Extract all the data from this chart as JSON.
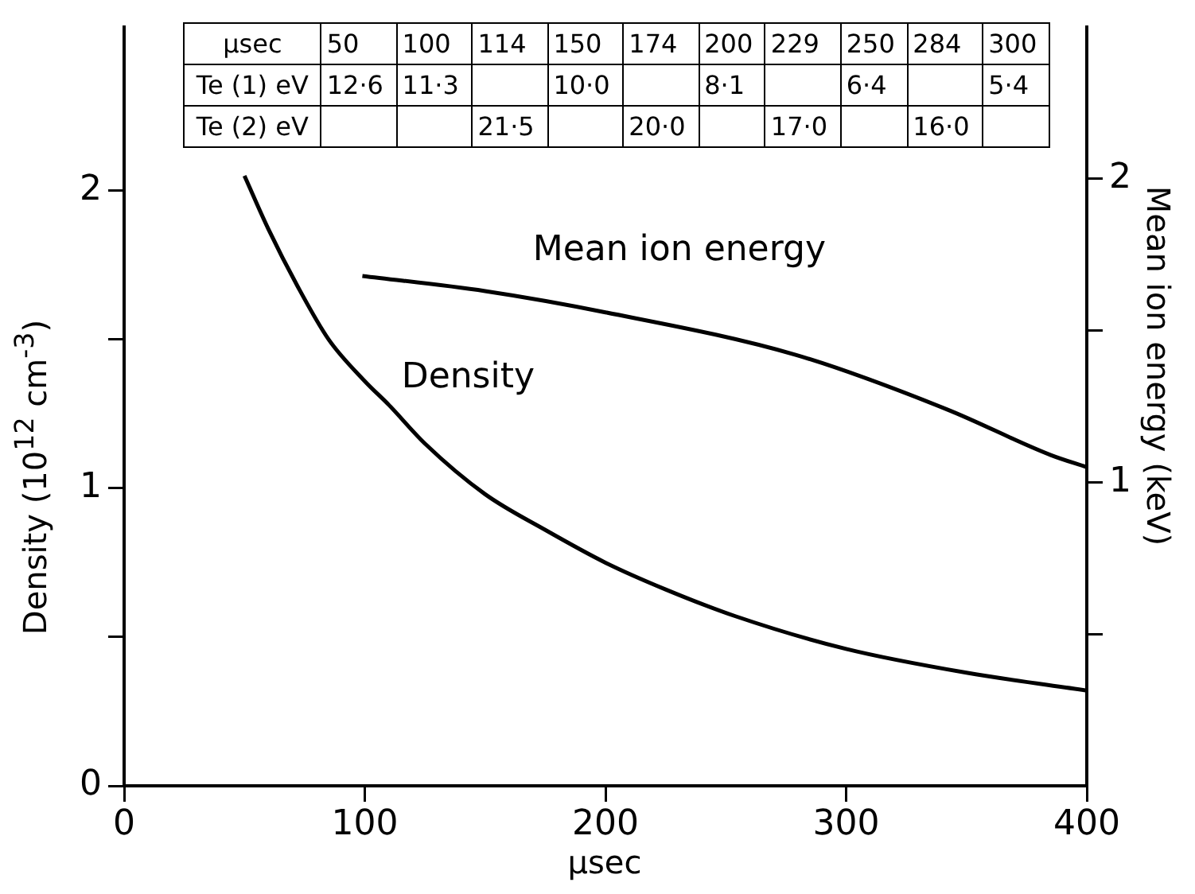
{
  "chart_data": {
    "type": "line",
    "xlabel": "μsec",
    "ylabel": "Density (10$^{12}$ cm$^{-3}$)",
    "y2label": "Mean ion energy (keV)",
    "xlim": [
      0,
      400
    ],
    "xticks": [
      0,
      100,
      200,
      300,
      400
    ],
    "ylim": [
      0,
      2.55
    ],
    "yticks": [
      0,
      {
        "value": 0.5,
        "label": null
      },
      1,
      {
        "value": 1.5,
        "label": null
      },
      2
    ],
    "y2lim": [
      0,
      2.5
    ],
    "y2ticks": [
      {
        "value": 0.5,
        "label": null
      },
      1,
      {
        "value": 1.5,
        "label": null
      },
      2
    ],
    "grid": false,
    "legend": false,
    "marker": "none",
    "line_style": "solid",
    "series": [
      {
        "name": "Density",
        "color": "#000000",
        "x": [
          50,
          60,
          72,
          85,
          100,
          110,
          125,
          150,
          175,
          200,
          225,
          254,
          300,
          350,
          400
        ],
        "values": [
          2.05,
          1.87,
          1.68,
          1.5,
          1.36,
          1.28,
          1.15,
          0.98,
          0.86,
          0.75,
          0.66,
          0.57,
          0.46,
          0.38,
          0.32
        ]
      },
      {
        "name": "Mean ion energy",
        "color": "#000000",
        "axis": "y2",
        "x": [
          99,
          150,
          200,
          279,
          342,
          385,
          400
        ],
        "values": [
          1.68,
          1.63,
          1.56,
          1.42,
          1.24,
          1.09,
          1.05
        ]
      }
    ],
    "annotations": [
      "μsec\t50\t100\t114\t150\t174\t200\t229\t250\t284\t300",
      "Te (1) eV\t12·6\t11·3\t\t10·0\t\t8·1\t\t6·4\t\t5·4",
      "Te (2) eV\t\t\t21·5\t\t20·0\t\t17·0\t\t16·0\t"
    ]
  }
}
